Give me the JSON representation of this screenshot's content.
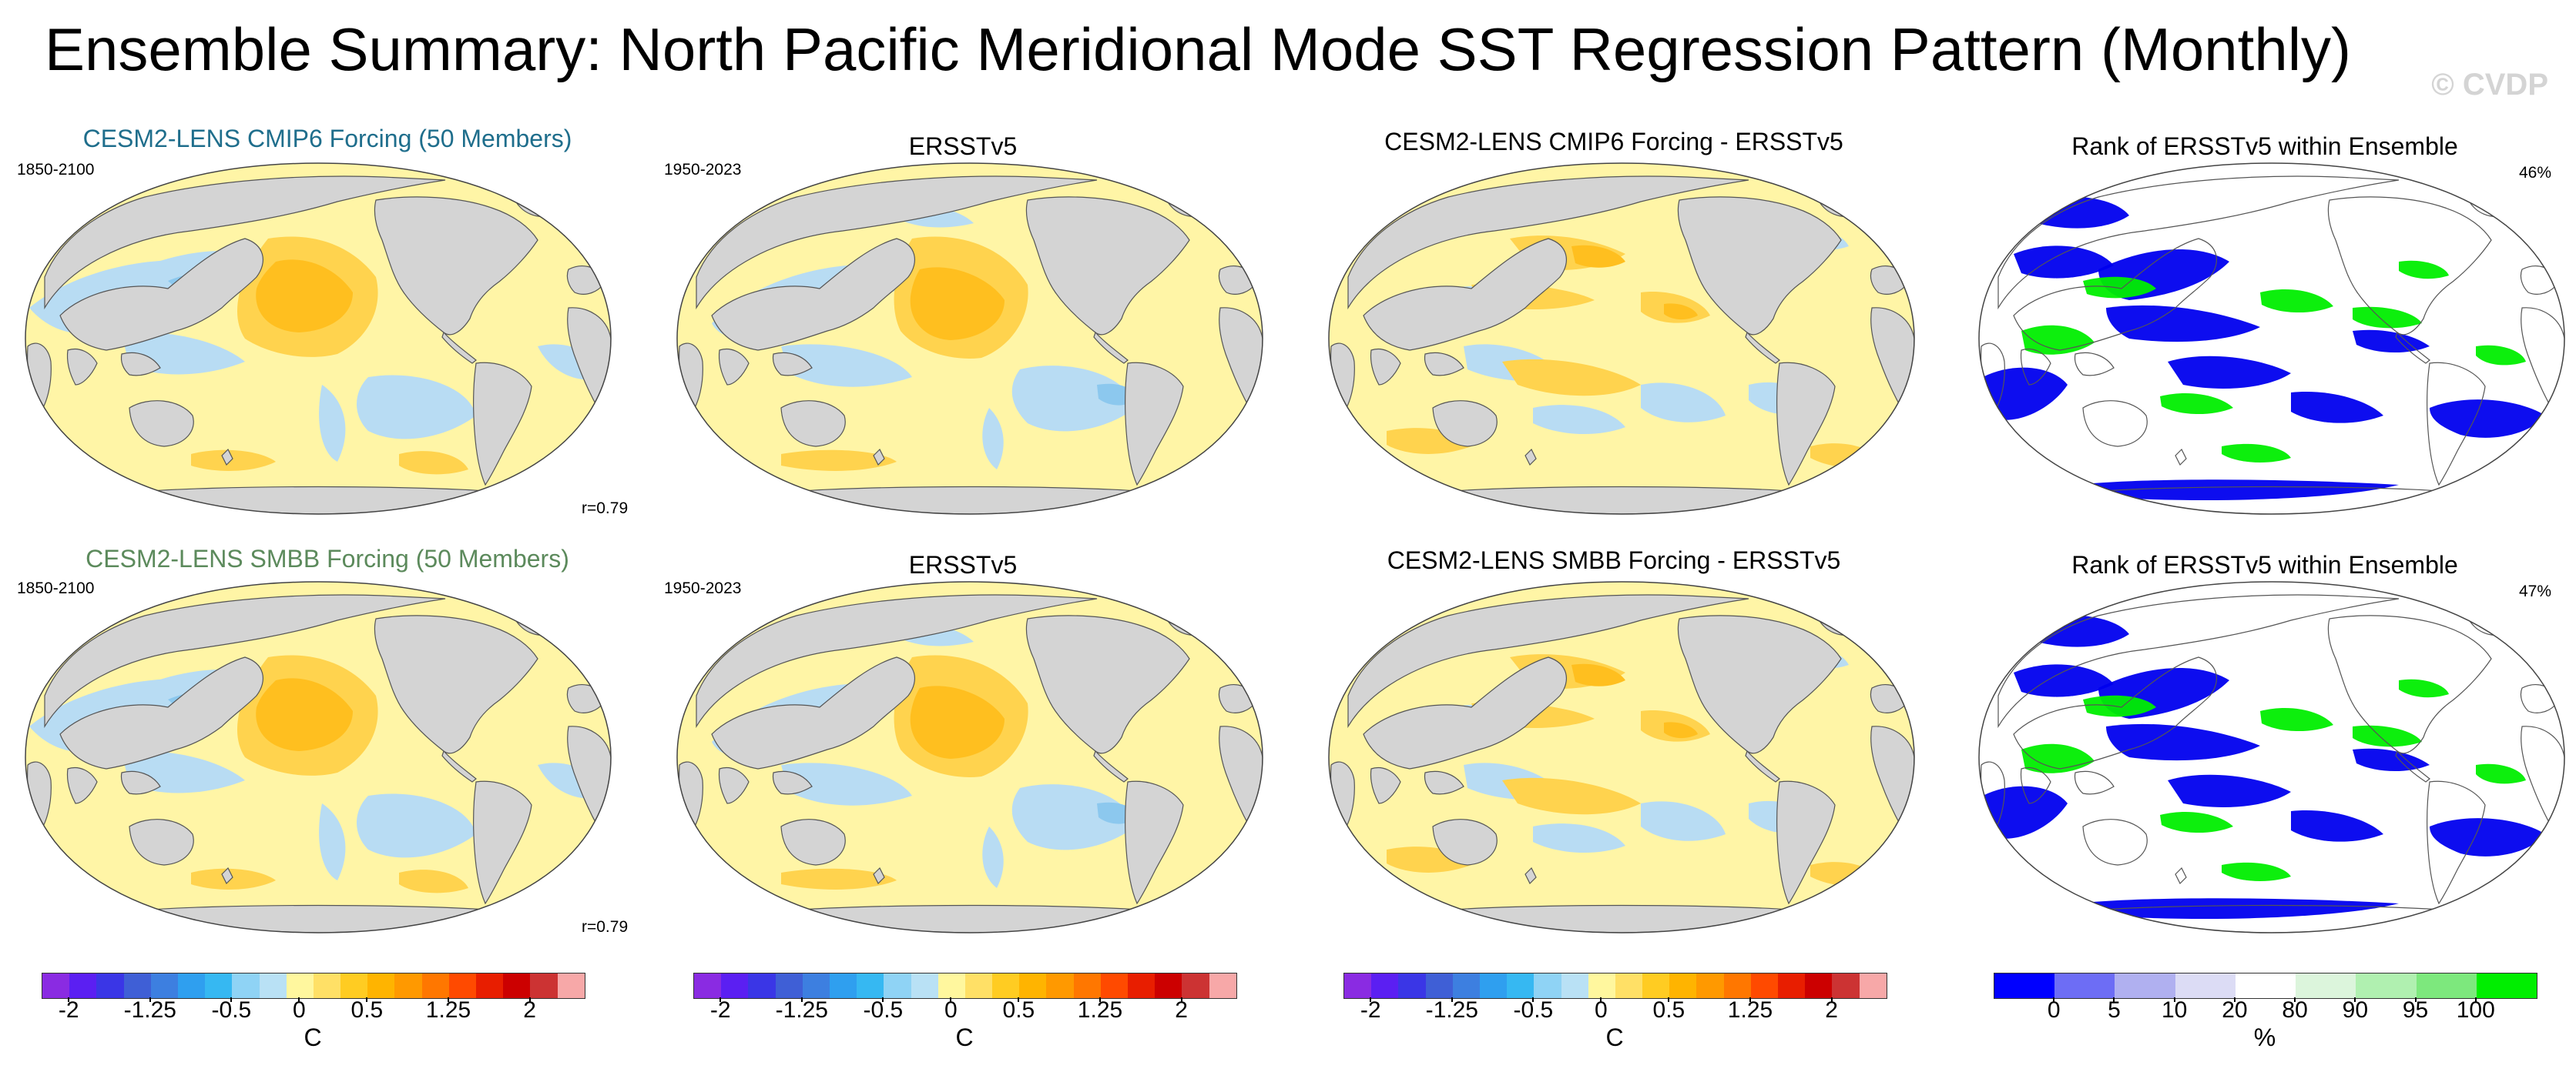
{
  "title": "Ensemble Summary: North Pacific Meridional Mode SST Regression Pattern (Monthly)",
  "watermark": "© CVDP",
  "rows": [
    {
      "panels": [
        {
          "title": "CESM2-LENS CMIP6 Forcing (50 Members)",
          "title_color": "#1f6e8c",
          "period": "1850-2100",
          "stat": "r=0.79",
          "kind": "model"
        },
        {
          "title": "ERSSTv5",
          "period": "1950-2023",
          "kind": "obs"
        },
        {
          "title": "CESM2-LENS CMIP6 Forcing - ERSSTv5",
          "kind": "diff"
        },
        {
          "title": "Rank of ERSSTv5 within Ensemble",
          "stat": "46%",
          "kind": "rank"
        }
      ]
    },
    {
      "panels": [
        {
          "title": "CESM2-LENS SMBB Forcing (50 Members)",
          "title_color": "#5c8a5c",
          "period": "1850-2100",
          "stat": "r=0.79",
          "kind": "model"
        },
        {
          "title": "ERSSTv5",
          "period": "1950-2023",
          "kind": "obs"
        },
        {
          "title": "CESM2-LENS SMBB Forcing - ERSSTv5",
          "kind": "diff"
        },
        {
          "title": "Rank of ERSSTv5 within Ensemble",
          "stat": "47%",
          "kind": "rank"
        }
      ]
    }
  ],
  "colorbars": [
    {
      "unit": "C",
      "tick_labels": [
        "-2",
        "-1.25",
        "-0.5",
        "0",
        "0.5",
        "1.25",
        "2"
      ],
      "colors": [
        "#8a2be2",
        "#5b1ff2",
        "#3a36e6",
        "#3f5fd6",
        "#3d7fe0",
        "#2f9fef",
        "#36b8f2",
        "#8fd3f5",
        "#b9e1f5",
        "#fff79e",
        "#ffe066",
        "#ffcc22",
        "#ffb400",
        "#ff9900",
        "#ff7700",
        "#ff4a00",
        "#e81e00",
        "#cc0000",
        "#cc3333",
        "#f7a8a8"
      ]
    },
    {
      "unit": "%",
      "tick_labels": [
        "0",
        "5",
        "10",
        "20",
        "80",
        "90",
        "95",
        "100"
      ],
      "colors": [
        "#0000ff",
        "#6d6df5",
        "#b0b0f0",
        "#dcdcf5",
        "#ffffff",
        "#dcf5dc",
        "#b0f0b0",
        "#7de87d",
        "#00ee00"
      ]
    }
  ],
  "map_colors": {
    "land": "#d4d4d4",
    "ocean": "#fff5a6",
    "neg": "#b8dcf3",
    "neg_strong": "#8cc8ee",
    "neg_core": "#3fa9ef",
    "pos": "#ffd34e",
    "pos_strong": "#ffbf1f",
    "rank_low": "#0000ee",
    "rank_high": "#00ee00",
    "rank_bg": "#ffffff"
  }
}
